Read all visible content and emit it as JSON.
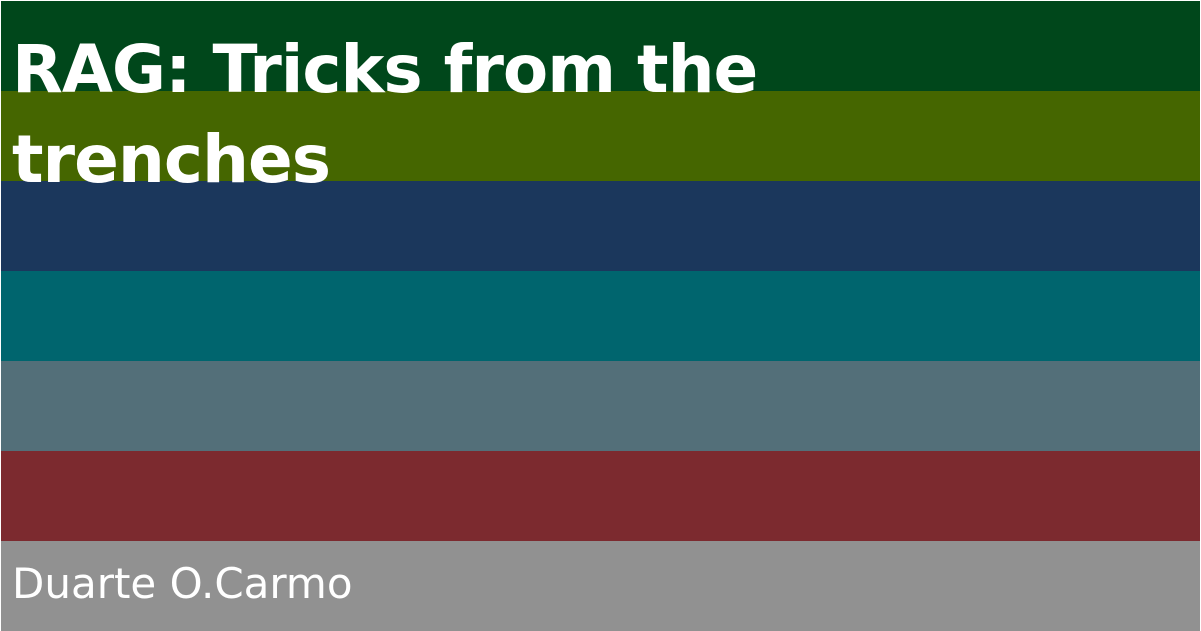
{
  "title": "RAG: Tricks from the trenches",
  "author": "Duarte O.Carmo",
  "colors": {
    "stripes": [
      "#00471b",
      "#456600",
      "#1b375c",
      "#00656e",
      "#536f79",
      "#7c2a2f",
      "#919191"
    ]
  }
}
